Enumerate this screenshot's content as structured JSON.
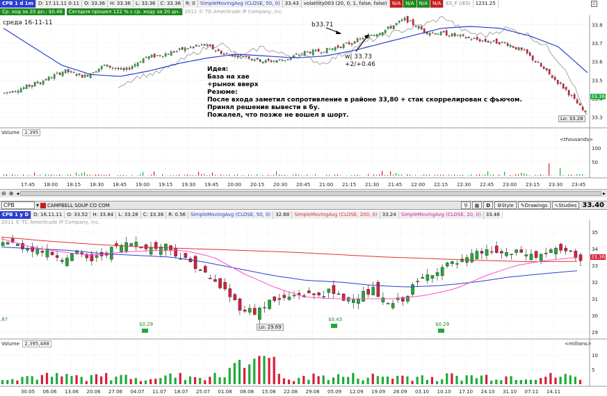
{
  "top": {
    "header": {
      "symbol": "CPB 1 d 1m",
      "date": "D: 17.11.11 0:11",
      "open": "O: 33.36",
      "high": "H: 33.36",
      "low": "L: 33.36",
      "close": "C: 33.36",
      "range": "R: 0",
      "sma_label": "SimpleMovingAvg (CLOSE, 50, 0)",
      "sma_value": "33.43",
      "vol_label": "volatility003 (20, 0, 1, false, false)",
      "na1": "N/A",
      "na2": "N/A",
      "na3": "N/A",
      "na4": "N/A",
      "es_label": "ES_F (/ES)",
      "es_value": "1231.25"
    },
    "tag_avg": "Ср. ход за 20 дн.: $0.46",
    "tag_today": "Сегодня прошел 122 % с ср. ходу за 20 дн.",
    "copyright": "2011 © TD Ameritrade IP Company, Inc.",
    "day_label": "среда 16-11-11",
    "buy_label": "b33.71",
    "sell_label1": "w| 33.73",
    "sell_label2": "+2/+0.46",
    "lo_label": "Lo: 33.28",
    "last_price": "33.36",
    "note": {
      "l1": "Идея:",
      "l2": "База на хае",
      "l3": "+рынок вверх",
      "l4": "Резюме:",
      "l5": "После входа заметил сопротивление в районе 33,80 + стак скоррелирован с фьючом.",
      "l6": "Принял решение вывести в бу.",
      "l7": "Пожалел, что позже не вошел в шорт."
    },
    "price_axis": [
      "33.8",
      "33.7",
      "33.6",
      "33.5",
      "33.4",
      "33.3"
    ],
    "volume_label": "Volume",
    "volume_value": "2,395",
    "volume_unit": "<thousands>",
    "vol_axis": [
      "100",
      "50"
    ],
    "time_axis": [
      "17:45",
      "18:00",
      "18:15",
      "18:30",
      "18:45",
      "19:00",
      "19:15",
      "19:30",
      "19:45",
      "20:00",
      "20:15",
      "20:30",
      "20:45",
      "21:00",
      "21:15",
      "21:30",
      "21:45",
      "22:00",
      "22:15",
      "22:30",
      "22:45",
      "23:00",
      "23:15",
      "23:30",
      "23:45"
    ]
  },
  "toolbar": {
    "symbol_value": "CPB",
    "company": "CAMPBELL SOUP CO COM",
    "d_btn": "D",
    "style_btn": "Style",
    "drawings_btn": "Drawings",
    "studies_btn": "Studies",
    "price": "33.40"
  },
  "bottom": {
    "header": {
      "symbol": "CPB 1 y D",
      "date": "D: 16.11.11",
      "open": "O: 33.52",
      "high": "H: 33.84",
      "low": "L: 33.28",
      "close": "C: 33.36",
      "range": "R: 0.56",
      "sma50": "SimpleMovingAvg (CLOSE, 50, 0)",
      "sma50_v": "32.68",
      "sma200": "SimpleMovingAvg (CLOSE, 200, 0)",
      "sma200_v": "33.24",
      "sma20": "SimpleMovingAvg (CLOSE, 20, 0)",
      "sma20_v": "33.48"
    },
    "copyright": "2011 © TD Ameritrade IP Company, Inc.",
    "price_axis": [
      "35",
      "34",
      "33",
      "32",
      "31",
      "30",
      "29"
    ],
    "last_price": "33.36",
    "lo_label": "Lo: 29.69",
    "div1": "$0.29",
    "div2": "$0.43",
    "div3": "$0.29",
    "div0": ".87",
    "volume_label": "Volume",
    "volume_value": "2,395,488",
    "volume_unit": "<millions>",
    "vol_axis": [
      "10",
      "5"
    ],
    "date_axis": [
      "30.05",
      "06.06",
      "13.06",
      "20.06",
      "27.06",
      "04.07",
      "11.07",
      "18.07",
      "25.07",
      "01.08",
      "08.08",
      "15.08",
      "22.08",
      "29.08",
      "05.09",
      "12.09",
      "19.09",
      "26.09",
      "03.10",
      "10.10",
      "17.10",
      "24.10",
      "31.10",
      "07.11",
      "14.11"
    ]
  },
  "colors": {
    "up": "#1faa3a",
    "down": "#d81e3c",
    "sma_blue": "#2a3fd0",
    "sma_red": "#e03030",
    "sma_pink": "#ff4fc8",
    "es_gray": "#909090"
  }
}
